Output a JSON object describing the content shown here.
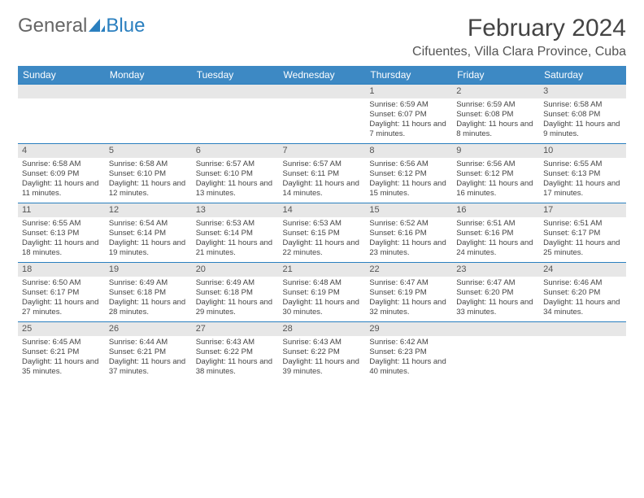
{
  "brand": {
    "part1": "General",
    "part2": "Blue"
  },
  "title": "February 2024",
  "subtitle": "Cifuentes, Villa Clara Province, Cuba",
  "colors": {
    "header_bg": "#3d89c4",
    "rule": "#2a7fbf",
    "daynum_bg": "#e7e7e7",
    "text": "#444444",
    "brand_gray": "#666666",
    "brand_blue": "#2a7fbf",
    "page_bg": "#ffffff"
  },
  "fonts": {
    "title_size": 30,
    "subtitle_size": 16,
    "header_size": 12,
    "daynum_size": 11,
    "body_size": 9.5
  },
  "weekdays": [
    "Sunday",
    "Monday",
    "Tuesday",
    "Wednesday",
    "Thursday",
    "Friday",
    "Saturday"
  ],
  "weeks": [
    [
      null,
      null,
      null,
      null,
      {
        "n": "1",
        "sr": "6:59 AM",
        "ss": "6:07 PM",
        "dl": "11 hours and 7 minutes."
      },
      {
        "n": "2",
        "sr": "6:59 AM",
        "ss": "6:08 PM",
        "dl": "11 hours and 8 minutes."
      },
      {
        "n": "3",
        "sr": "6:58 AM",
        "ss": "6:08 PM",
        "dl": "11 hours and 9 minutes."
      }
    ],
    [
      {
        "n": "4",
        "sr": "6:58 AM",
        "ss": "6:09 PM",
        "dl": "11 hours and 11 minutes."
      },
      {
        "n": "5",
        "sr": "6:58 AM",
        "ss": "6:10 PM",
        "dl": "11 hours and 12 minutes."
      },
      {
        "n": "6",
        "sr": "6:57 AM",
        "ss": "6:10 PM",
        "dl": "11 hours and 13 minutes."
      },
      {
        "n": "7",
        "sr": "6:57 AM",
        "ss": "6:11 PM",
        "dl": "11 hours and 14 minutes."
      },
      {
        "n": "8",
        "sr": "6:56 AM",
        "ss": "6:12 PM",
        "dl": "11 hours and 15 minutes."
      },
      {
        "n": "9",
        "sr": "6:56 AM",
        "ss": "6:12 PM",
        "dl": "11 hours and 16 minutes."
      },
      {
        "n": "10",
        "sr": "6:55 AM",
        "ss": "6:13 PM",
        "dl": "11 hours and 17 minutes."
      }
    ],
    [
      {
        "n": "11",
        "sr": "6:55 AM",
        "ss": "6:13 PM",
        "dl": "11 hours and 18 minutes."
      },
      {
        "n": "12",
        "sr": "6:54 AM",
        "ss": "6:14 PM",
        "dl": "11 hours and 19 minutes."
      },
      {
        "n": "13",
        "sr": "6:53 AM",
        "ss": "6:14 PM",
        "dl": "11 hours and 21 minutes."
      },
      {
        "n": "14",
        "sr": "6:53 AM",
        "ss": "6:15 PM",
        "dl": "11 hours and 22 minutes."
      },
      {
        "n": "15",
        "sr": "6:52 AM",
        "ss": "6:16 PM",
        "dl": "11 hours and 23 minutes."
      },
      {
        "n": "16",
        "sr": "6:51 AM",
        "ss": "6:16 PM",
        "dl": "11 hours and 24 minutes."
      },
      {
        "n": "17",
        "sr": "6:51 AM",
        "ss": "6:17 PM",
        "dl": "11 hours and 25 minutes."
      }
    ],
    [
      {
        "n": "18",
        "sr": "6:50 AM",
        "ss": "6:17 PM",
        "dl": "11 hours and 27 minutes."
      },
      {
        "n": "19",
        "sr": "6:49 AM",
        "ss": "6:18 PM",
        "dl": "11 hours and 28 minutes."
      },
      {
        "n": "20",
        "sr": "6:49 AM",
        "ss": "6:18 PM",
        "dl": "11 hours and 29 minutes."
      },
      {
        "n": "21",
        "sr": "6:48 AM",
        "ss": "6:19 PM",
        "dl": "11 hours and 30 minutes."
      },
      {
        "n": "22",
        "sr": "6:47 AM",
        "ss": "6:19 PM",
        "dl": "11 hours and 32 minutes."
      },
      {
        "n": "23",
        "sr": "6:47 AM",
        "ss": "6:20 PM",
        "dl": "11 hours and 33 minutes."
      },
      {
        "n": "24",
        "sr": "6:46 AM",
        "ss": "6:20 PM",
        "dl": "11 hours and 34 minutes."
      }
    ],
    [
      {
        "n": "25",
        "sr": "6:45 AM",
        "ss": "6:21 PM",
        "dl": "11 hours and 35 minutes."
      },
      {
        "n": "26",
        "sr": "6:44 AM",
        "ss": "6:21 PM",
        "dl": "11 hours and 37 minutes."
      },
      {
        "n": "27",
        "sr": "6:43 AM",
        "ss": "6:22 PM",
        "dl": "11 hours and 38 minutes."
      },
      {
        "n": "28",
        "sr": "6:43 AM",
        "ss": "6:22 PM",
        "dl": "11 hours and 39 minutes."
      },
      {
        "n": "29",
        "sr": "6:42 AM",
        "ss": "6:23 PM",
        "dl": "11 hours and 40 minutes."
      },
      null,
      null
    ]
  ],
  "labels": {
    "sunrise": "Sunrise:",
    "sunset": "Sunset:",
    "daylight": "Daylight:"
  }
}
